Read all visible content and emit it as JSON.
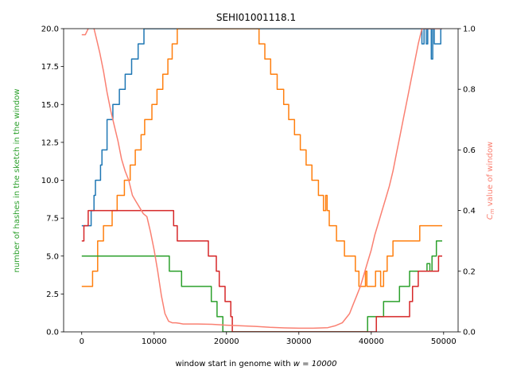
{
  "chart_data": {
    "type": "line",
    "title": "SEHI01001118.1",
    "xlabel": "window start in genome with $w = 10000$",
    "xlabel_prefix": "window start in genome with ",
    "xlabel_math": "w = 10000",
    "ylabel_left": "number of hashes in the sketch in the window",
    "ylabel_right": "$C_m$ value of window",
    "ylabel_right_math": "C",
    "ylabel_right_sub": "m",
    "ylabel_right_suffix": " value of window",
    "xlim": [
      -2500,
      52000
    ],
    "ylim_left": [
      0,
      20
    ],
    "ylim_right": [
      0,
      1
    ],
    "x_ticks": [
      0,
      10000,
      20000,
      30000,
      40000,
      50000
    ],
    "y_left_ticks": [
      0.0,
      2.5,
      5.0,
      7.5,
      10.0,
      12.5,
      15.0,
      17.5,
      20.0
    ],
    "y_right_ticks": [
      0.0,
      0.2,
      0.4,
      0.6,
      0.8,
      1.0
    ],
    "left_axis_color": "#2ca02c",
    "right_axis_color": "#fa8072",
    "series": [
      {
        "color": "#1f77b4",
        "axis": "left",
        "step": true,
        "points": [
          [
            0,
            7
          ],
          [
            1000,
            7
          ],
          [
            1300,
            8
          ],
          [
            1700,
            9
          ],
          [
            1900,
            10
          ],
          [
            2600,
            11
          ],
          [
            2800,
            12
          ],
          [
            3500,
            14
          ],
          [
            4300,
            15
          ],
          [
            5200,
            16
          ],
          [
            6000,
            17
          ],
          [
            6900,
            18
          ],
          [
            7800,
            19
          ],
          [
            8600,
            20
          ],
          [
            46800,
            20
          ],
          [
            47000,
            19
          ],
          [
            47300,
            20
          ],
          [
            47600,
            19
          ],
          [
            47800,
            20
          ],
          [
            48300,
            18
          ],
          [
            48500,
            20
          ],
          [
            48700,
            19
          ],
          [
            49600,
            20
          ],
          [
            49800,
            20
          ]
        ]
      },
      {
        "color": "#ff7f0e",
        "axis": "left",
        "step": true,
        "points": [
          [
            0,
            3
          ],
          [
            1500,
            4
          ],
          [
            2200,
            6
          ],
          [
            3000,
            7
          ],
          [
            4200,
            8
          ],
          [
            4900,
            9
          ],
          [
            5900,
            10
          ],
          [
            6700,
            11
          ],
          [
            7400,
            12
          ],
          [
            8200,
            13
          ],
          [
            8700,
            14
          ],
          [
            9700,
            15
          ],
          [
            10400,
            16
          ],
          [
            11200,
            17
          ],
          [
            11900,
            18
          ],
          [
            12500,
            19
          ],
          [
            13200,
            20
          ],
          [
            23700,
            20
          ],
          [
            24500,
            19
          ],
          [
            25300,
            18
          ],
          [
            26100,
            17
          ],
          [
            27000,
            16
          ],
          [
            27900,
            15
          ],
          [
            28600,
            14
          ],
          [
            29400,
            13
          ],
          [
            30200,
            12
          ],
          [
            31000,
            11
          ],
          [
            31800,
            10
          ],
          [
            32700,
            9
          ],
          [
            33400,
            8
          ],
          [
            33700,
            9
          ],
          [
            33900,
            8
          ],
          [
            34200,
            7
          ],
          [
            35200,
            6
          ],
          [
            36300,
            5
          ],
          [
            37800,
            4
          ],
          [
            38300,
            3
          ],
          [
            39200,
            4
          ],
          [
            39400,
            3
          ],
          [
            40300,
            3
          ],
          [
            40600,
            4
          ],
          [
            41000,
            4
          ],
          [
            41300,
            3
          ],
          [
            41700,
            4
          ],
          [
            42200,
            5
          ],
          [
            43000,
            6
          ],
          [
            45600,
            6
          ],
          [
            46700,
            7
          ],
          [
            49800,
            7
          ]
        ]
      },
      {
        "color": "#2ca02c",
        "axis": "left",
        "step": true,
        "points": [
          [
            0,
            5
          ],
          [
            11900,
            5
          ],
          [
            12100,
            4
          ],
          [
            13800,
            3
          ],
          [
            17700,
            3
          ],
          [
            17900,
            2
          ],
          [
            18700,
            1
          ],
          [
            19500,
            0
          ],
          [
            39300,
            0
          ],
          [
            39500,
            1
          ],
          [
            41500,
            1
          ],
          [
            41700,
            2
          ],
          [
            43700,
            2
          ],
          [
            43900,
            3
          ],
          [
            45100,
            3
          ],
          [
            45300,
            4
          ],
          [
            47500,
            4
          ],
          [
            47700,
            4.5
          ],
          [
            48100,
            4
          ],
          [
            48400,
            5
          ],
          [
            49000,
            6
          ],
          [
            49800,
            6
          ]
        ]
      },
      {
        "color": "#d62728",
        "axis": "left",
        "step": true,
        "points": [
          [
            0,
            6
          ],
          [
            300,
            7
          ],
          [
            900,
            8
          ],
          [
            12400,
            8
          ],
          [
            12700,
            7
          ],
          [
            13200,
            6
          ],
          [
            17300,
            6
          ],
          [
            17500,
            5
          ],
          [
            18600,
            4
          ],
          [
            19000,
            3
          ],
          [
            19800,
            2
          ],
          [
            20600,
            1
          ],
          [
            20800,
            0
          ],
          [
            40500,
            0
          ],
          [
            40700,
            1
          ],
          [
            45100,
            1
          ],
          [
            45300,
            2
          ],
          [
            45700,
            3
          ],
          [
            46500,
            4
          ],
          [
            48900,
            4
          ],
          [
            49300,
            5
          ],
          [
            49800,
            5
          ]
        ]
      },
      {
        "color": "#fa8072",
        "axis": "right",
        "step": false,
        "points": [
          [
            0,
            0.98
          ],
          [
            500,
            0.98
          ],
          [
            900,
            1.0
          ],
          [
            1300,
            1.01
          ],
          [
            1700,
            1.0
          ],
          [
            2000,
            0.97
          ],
          [
            2500,
            0.92
          ],
          [
            3000,
            0.86
          ],
          [
            3500,
            0.79
          ],
          [
            4000,
            0.73
          ],
          [
            4500,
            0.68
          ],
          [
            5000,
            0.63
          ],
          [
            5500,
            0.57
          ],
          [
            6000,
            0.53
          ],
          [
            6500,
            0.5
          ],
          [
            7000,
            0.45
          ],
          [
            7500,
            0.43
          ],
          [
            8000,
            0.41
          ],
          [
            8500,
            0.39
          ],
          [
            9000,
            0.38
          ],
          [
            9500,
            0.33
          ],
          [
            10000,
            0.27
          ],
          [
            10500,
            0.2
          ],
          [
            11000,
            0.12
          ],
          [
            11500,
            0.06
          ],
          [
            12000,
            0.035
          ],
          [
            12500,
            0.03
          ],
          [
            13000,
            0.03
          ],
          [
            13500,
            0.028
          ],
          [
            14000,
            0.026
          ],
          [
            16000,
            0.026
          ],
          [
            18000,
            0.025
          ],
          [
            20000,
            0.022
          ],
          [
            22000,
            0.02
          ],
          [
            24000,
            0.018
          ],
          [
            26000,
            0.015
          ],
          [
            28000,
            0.013
          ],
          [
            30000,
            0.012
          ],
          [
            32000,
            0.012
          ],
          [
            34000,
            0.014
          ],
          [
            35000,
            0.02
          ],
          [
            36000,
            0.03
          ],
          [
            37000,
            0.06
          ],
          [
            37500,
            0.09
          ],
          [
            38000,
            0.12
          ],
          [
            38500,
            0.15
          ],
          [
            39000,
            0.19
          ],
          [
            39500,
            0.23
          ],
          [
            40000,
            0.27
          ],
          [
            40500,
            0.32
          ],
          [
            41000,
            0.36
          ],
          [
            41500,
            0.4
          ],
          [
            42000,
            0.44
          ],
          [
            42500,
            0.48
          ],
          [
            43000,
            0.53
          ],
          [
            43500,
            0.59
          ],
          [
            44000,
            0.65
          ],
          [
            44500,
            0.71
          ],
          [
            45000,
            0.77
          ],
          [
            45500,
            0.83
          ],
          [
            46000,
            0.89
          ],
          [
            46500,
            0.95
          ],
          [
            47000,
            1.0
          ],
          [
            49800,
            1.0
          ]
        ]
      }
    ]
  }
}
